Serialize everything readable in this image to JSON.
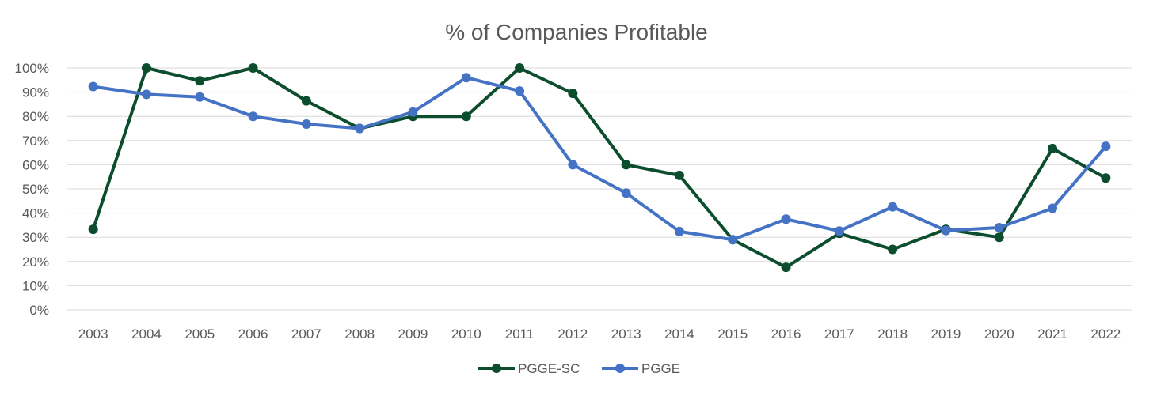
{
  "chart_data": {
    "type": "line",
    "title": "% of Companies Profitable",
    "xlabel": "",
    "ylabel": "",
    "x": [
      "2003",
      "2004",
      "2005",
      "2006",
      "2007",
      "2008",
      "2009",
      "2010",
      "2011",
      "2012",
      "2013",
      "2014",
      "2015",
      "2016",
      "2017",
      "2018",
      "2019",
      "2020",
      "2021",
      "2022"
    ],
    "yticks": [
      "0%",
      "10%",
      "20%",
      "30%",
      "40%",
      "50%",
      "60%",
      "70%",
      "80%",
      "90%",
      "100%"
    ],
    "ylim": [
      0,
      100
    ],
    "grid": true,
    "legend_position": "bottom",
    "series": [
      {
        "name": "PGGE-SC",
        "color": "#0b4d2c",
        "values": [
          33.3,
          100,
          94.7,
          100,
          86.4,
          75,
          80,
          80,
          100,
          89.5,
          60,
          55.6,
          29,
          17.6,
          31.6,
          25,
          33.3,
          30,
          66.7,
          54.5
        ]
      },
      {
        "name": "PGGE",
        "color": "#4472c4",
        "values": [
          92.3,
          89.1,
          88,
          80,
          76.8,
          75,
          81.8,
          96,
          90.5,
          60,
          48.3,
          32.4,
          29,
          37.5,
          32.6,
          42.6,
          32.8,
          34,
          42,
          67.6
        ]
      }
    ]
  }
}
